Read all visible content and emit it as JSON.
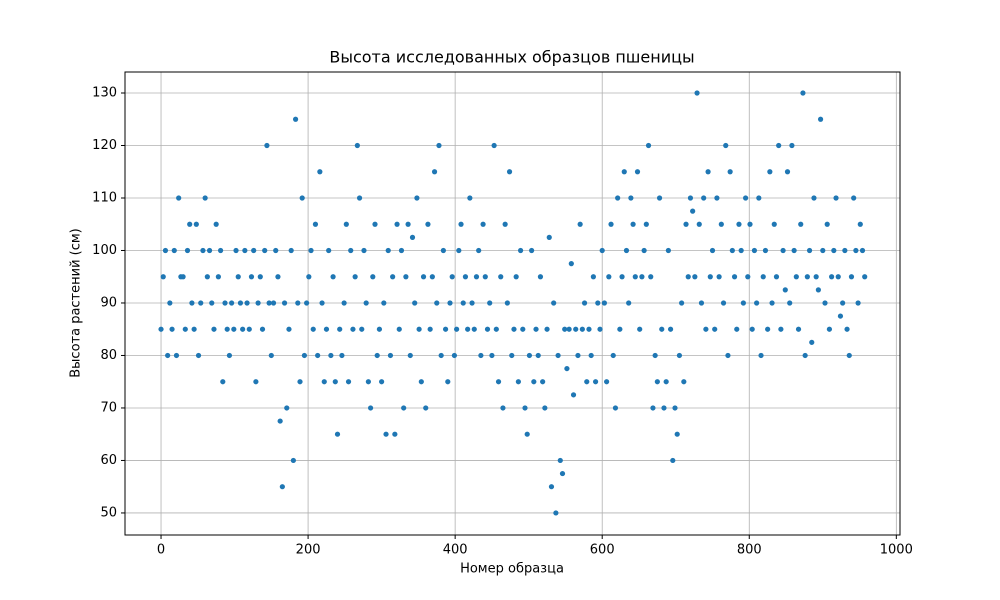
{
  "chart_data": {
    "type": "scatter",
    "title": "Высота исследованных образцов пшеницы",
    "x_label": "Номер образца",
    "y_label": "Высота растений (см)",
    "color": "#1f77b4",
    "grid": true,
    "xlim": [
      -49,
      1005
    ],
    "ylim": [
      45.8,
      134
    ],
    "xticks": [
      0,
      200,
      400,
      600,
      800,
      1000
    ],
    "yticks": [
      50,
      60,
      70,
      80,
      90,
      100,
      110,
      120,
      130
    ],
    "x": [
      0,
      3,
      6,
      9,
      12,
      15,
      18,
      21,
      24,
      27,
      30,
      33,
      36,
      39,
      42,
      45,
      48,
      51,
      54,
      57,
      60,
      63,
      66,
      69,
      72,
      75,
      78,
      81,
      84,
      87,
      90,
      93,
      96,
      99,
      102,
      105,
      108,
      111,
      114,
      117,
      120,
      123,
      126,
      129,
      132,
      135,
      138,
      141,
      144,
      147,
      150,
      153,
      156,
      159,
      162,
      165,
      168,
      171,
      174,
      177,
      180,
      183,
      186,
      189,
      192,
      195,
      198,
      201,
      204,
      207,
      210,
      213,
      216,
      219,
      222,
      225,
      228,
      231,
      234,
      237,
      240,
      243,
      246,
      249,
      252,
      255,
      258,
      261,
      264,
      267,
      270,
      273,
      276,
      279,
      282,
      285,
      288,
      291,
      294,
      297,
      300,
      303,
      306,
      309,
      312,
      315,
      318,
      321,
      324,
      327,
      330,
      333,
      336,
      339,
      342,
      345,
      348,
      351,
      354,
      357,
      360,
      363,
      366,
      369,
      372,
      375,
      378,
      381,
      384,
      387,
      390,
      393,
      396,
      399,
      402,
      405,
      408,
      411,
      414,
      417,
      420,
      423,
      426,
      429,
      432,
      435,
      438,
      441,
      444,
      447,
      450,
      453,
      456,
      459,
      462,
      465,
      468,
      471,
      474,
      477,
      480,
      483,
      486,
      489,
      492,
      495,
      498,
      501,
      504,
      507,
      510,
      513,
      516,
      519,
      522,
      525,
      528,
      531,
      534,
      537,
      540,
      543,
      546,
      549,
      552,
      555,
      558,
      561,
      564,
      567,
      570,
      573,
      576,
      579,
      582,
      585,
      588,
      591,
      594,
      597,
      600,
      603,
      606,
      609,
      612,
      615,
      618,
      621,
      624,
      627,
      630,
      633,
      636,
      639,
      642,
      645,
      648,
      651,
      654,
      657,
      660,
      663,
      666,
      669,
      672,
      675,
      678,
      681,
      684,
      687,
      690,
      693,
      696,
      699,
      702,
      705,
      708,
      711,
      714,
      717,
      720,
      723,
      726,
      729,
      732,
      735,
      738,
      741,
      744,
      747,
      750,
      753,
      756,
      759,
      762,
      765,
      768,
      771,
      774,
      777,
      780,
      783,
      786,
      789,
      792,
      795,
      798,
      801,
      804,
      807,
      810,
      813,
      816,
      819,
      822,
      825,
      828,
      831,
      834,
      837,
      840,
      843,
      846,
      849,
      852,
      855,
      858,
      861,
      864,
      867,
      870,
      873,
      876,
      879,
      882,
      885,
      888,
      891,
      894,
      897,
      900,
      903,
      906,
      909,
      912,
      915,
      918,
      921,
      924,
      927,
      930,
      933,
      936,
      939,
      942,
      945,
      948,
      951,
      954,
      957
    ],
    "values": [
      85,
      95,
      100,
      80,
      90,
      85,
      100,
      80,
      110,
      95,
      95,
      85,
      100,
      105,
      90,
      85,
      105,
      80,
      90,
      100,
      110,
      95,
      100,
      90,
      85,
      105,
      95,
      100,
      75,
      90,
      85,
      80,
      90,
      85,
      100,
      95,
      90,
      85,
      100,
      90,
      85,
      95,
      100,
      75,
      90,
      95,
      85,
      100,
      120,
      90,
      80,
      90,
      100,
      95,
      67.5,
      55,
      90,
      70,
      85,
      100,
      60,
      125,
      90,
      75,
      110,
      80,
      90,
      95,
      100,
      85,
      105,
      80,
      115,
      90,
      75,
      85,
      100,
      80,
      95,
      75,
      65,
      85,
      80,
      90,
      105,
      75,
      100,
      85,
      95,
      120,
      110,
      85,
      100,
      90,
      75,
      70,
      95,
      105,
      80,
      85,
      75,
      90,
      65,
      100,
      80,
      95,
      65,
      105,
      85,
      100,
      70,
      95,
      105,
      80,
      102.5,
      90,
      110,
      85,
      75,
      95,
      70,
      105,
      85,
      95,
      115,
      90,
      120,
      80,
      100,
      85,
      75,
      90,
      95,
      80,
      85,
      100,
      105,
      90,
      95,
      85,
      110,
      90,
      85,
      95,
      100,
      80,
      105,
      95,
      85,
      90,
      80,
      120,
      85,
      75,
      95,
      70,
      105,
      90,
      115,
      80,
      85,
      95,
      75,
      100,
      85,
      70,
      65,
      80,
      100,
      75,
      85,
      80,
      95,
      75,
      70,
      85,
      102.5,
      55,
      90,
      50,
      80,
      60,
      57.5,
      85,
      77.5,
      85,
      97.5,
      72.5,
      85,
      80,
      105,
      85,
      90,
      75,
      85,
      80,
      95,
      75,
      90,
      85,
      100,
      90,
      75,
      95,
      105,
      80,
      70,
      110,
      85,
      95,
      115,
      100,
      90,
      110,
      105,
      95,
      115,
      85,
      95,
      100,
      105,
      120,
      95,
      70,
      80,
      75,
      110,
      85,
      70,
      75,
      100,
      85,
      60,
      70,
      65,
      80,
      90,
      75,
      105,
      95,
      110,
      107.5,
      95,
      130,
      105,
      90,
      110,
      85,
      115,
      95,
      100,
      85,
      110,
      95,
      105,
      90,
      120,
      80,
      115,
      100,
      95,
      85,
      105,
      100,
      90,
      110,
      95,
      105,
      85,
      100,
      90,
      110,
      80,
      95,
      100,
      85,
      115,
      90,
      105,
      95,
      120,
      85,
      100,
      92.5,
      115,
      90,
      120,
      100,
      95,
      85,
      105,
      130,
      80,
      95,
      100,
      82.5,
      110,
      95,
      92.5,
      125,
      100,
      90,
      105,
      85,
      95,
      100,
      110,
      95,
      87.5,
      90,
      100,
      85,
      80,
      95,
      110,
      100,
      90,
      105,
      100,
      95
    ]
  }
}
